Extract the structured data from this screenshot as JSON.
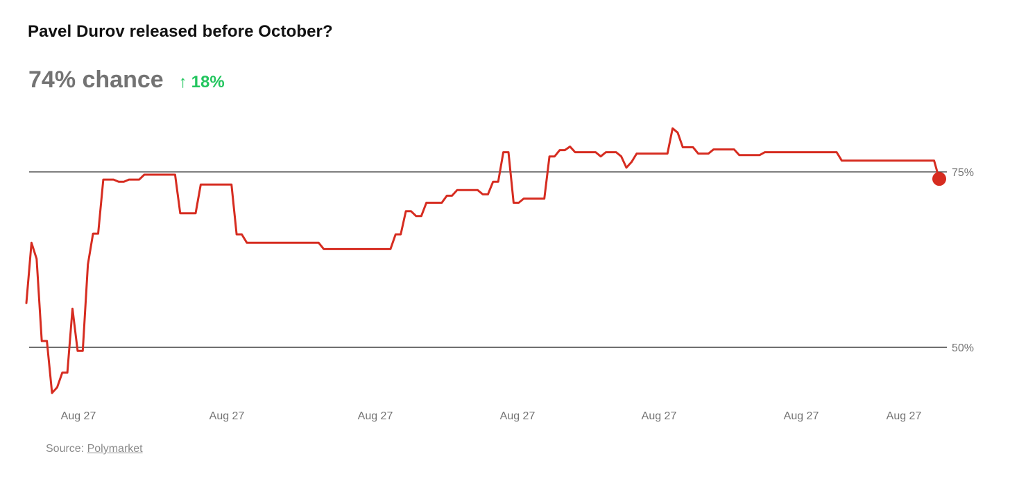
{
  "header": {
    "title": "Pavel Durov released before October?",
    "chance_label": "74% chance",
    "change_label": "18%"
  },
  "colors": {
    "line": "#d62c20",
    "change": "#22c55e",
    "axis_text": "#737373",
    "grid": "#333333"
  },
  "chart_data": {
    "type": "line",
    "title": "Pavel Durov released before October?",
    "x_tick_labels": [
      "Aug 27",
      "Aug 27",
      "Aug 27",
      "Aug 27",
      "Aug 27",
      "Aug 27",
      "Aug 27"
    ],
    "y_ticks": [
      50,
      75
    ],
    "y_tick_labels": [
      "50%",
      "75%"
    ],
    "ylim": [
      43.2,
      82.7
    ],
    "grid": "horizontal",
    "series": [
      {
        "values": [
          56.3,
          64.9,
          62.6,
          50.9,
          50.9,
          43.5,
          44.3,
          46.4,
          46.4,
          55.5,
          49.5,
          49.5,
          61.8,
          66.2,
          66.2,
          73.9,
          73.9,
          73.9,
          73.6,
          73.6,
          73.9,
          73.9,
          73.9,
          74.6,
          74.6,
          74.6,
          74.6,
          74.6,
          74.6,
          74.6,
          69.1,
          69.1,
          69.1,
          69.1,
          73.2,
          73.2,
          73.2,
          73.2,
          73.2,
          73.2,
          73.2,
          66.1,
          66.1,
          64.9,
          64.9,
          64.9,
          64.9,
          64.9,
          64.9,
          64.9,
          64.9,
          64.9,
          64.9,
          64.9,
          64.9,
          64.9,
          64.9,
          64.9,
          64.0,
          64.0,
          64.0,
          64.0,
          64.0,
          64.0,
          64.0,
          64.0,
          64.0,
          64.0,
          64.0,
          64.0,
          64.0,
          64.0,
          66.1,
          66.1,
          69.4,
          69.4,
          68.7,
          68.7,
          70.6,
          70.6,
          70.6,
          70.6,
          71.6,
          71.6,
          72.4,
          72.4,
          72.4,
          72.4,
          72.4,
          71.8,
          71.8,
          73.6,
          73.6,
          77.8,
          77.8,
          70.6,
          70.6,
          71.2,
          71.2,
          71.2,
          71.2,
          71.2,
          77.2,
          77.2,
          78.1,
          78.1,
          78.6,
          77.8,
          77.8,
          77.8,
          77.8,
          77.8,
          77.2,
          77.8,
          77.8,
          77.8,
          77.2,
          75.6,
          76.4,
          77.6,
          77.6,
          77.6,
          77.6,
          77.6,
          77.6,
          77.6,
          81.2,
          80.6,
          78.5,
          78.5,
          78.5,
          77.6,
          77.6,
          77.6,
          78.2,
          78.2,
          78.2,
          78.2,
          78.2,
          77.4,
          77.4,
          77.4,
          77.4,
          77.4,
          77.8,
          77.8,
          77.8,
          77.8,
          77.8,
          77.8,
          77.8,
          77.8,
          77.8,
          77.8,
          77.8,
          77.8,
          77.8,
          77.8,
          77.8,
          76.6,
          76.6,
          76.6,
          76.6,
          76.6,
          76.6,
          76.6,
          76.6,
          76.6,
          76.6,
          76.6,
          76.6,
          76.6,
          76.6,
          76.6,
          76.6,
          76.6,
          76.6,
          76.6,
          74.0
        ]
      }
    ],
    "current_value": 74,
    "change_percent": 18
  },
  "footer": {
    "source_prefix": "Source: ",
    "source_link": "Polymarket"
  }
}
